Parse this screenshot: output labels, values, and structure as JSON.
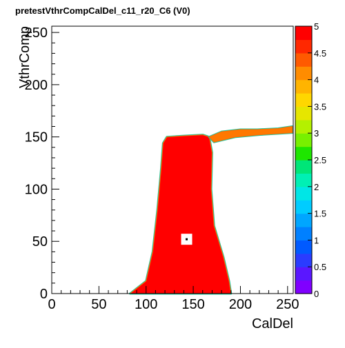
{
  "chart_data": {
    "type": "heatmap",
    "title": "pretestVthrCompCalDel_c11_r20_C6 (V0)",
    "xlabel": "CalDel",
    "ylabel": "VthrComp",
    "xlim": [
      0,
      256
    ],
    "ylim": [
      0,
      256
    ],
    "x_ticks": [
      0,
      50,
      100,
      150,
      200,
      250
    ],
    "y_ticks": [
      0,
      50,
      100,
      150,
      200,
      250
    ],
    "z_range": [
      0,
      5
    ],
    "z_ticks": [
      "0",
      "0.5",
      "1",
      "1.5",
      "2",
      "2.5",
      "3",
      "3.5",
      "4",
      "4.5",
      "5"
    ],
    "palette": [
      "#8000ff",
      "#5a17ff",
      "#2a3cff",
      "#005aff",
      "#0080ff",
      "#00a6ff",
      "#00ccff",
      "#00e6e6",
      "#00f0b4",
      "#00e678",
      "#1ee600",
      "#78f000",
      "#b4f000",
      "#e6e600",
      "#ffd700",
      "#ffb400",
      "#ff8c00",
      "#ff5a00",
      "#ff2800",
      "#ff0000"
    ],
    "grid": false,
    "regions": [
      {
        "name": "full response (value 5)",
        "value": 5,
        "outline": [
          [
            83,
            0
          ],
          [
            100,
            12
          ],
          [
            107,
            40
          ],
          [
            112,
            80
          ],
          [
            116,
            120
          ],
          [
            118,
            144
          ],
          [
            122,
            150
          ],
          [
            140,
            151
          ],
          [
            160,
            152
          ],
          [
            167,
            150
          ],
          [
            170,
            135
          ],
          [
            169,
            100
          ],
          [
            172,
            65
          ],
          [
            182,
            35
          ],
          [
            188,
            12
          ],
          [
            190,
            0
          ]
        ]
      },
      {
        "name": "high-threshold tail",
        "value": 4,
        "outline": [
          [
            167,
            150
          ],
          [
            180,
            155
          ],
          [
            200,
            157
          ],
          [
            218,
            157
          ],
          [
            240,
            158
          ],
          [
            255,
            160
          ],
          [
            255,
            154
          ],
          [
            220,
            152
          ],
          [
            195,
            150
          ],
          [
            172,
            145
          ]
        ]
      },
      {
        "name": "masked pixel",
        "value": 0,
        "x": 143,
        "y": 52
      }
    ]
  }
}
